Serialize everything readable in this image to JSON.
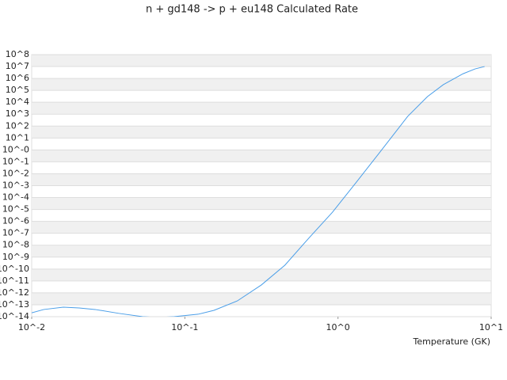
{
  "chart_data": {
    "type": "line",
    "title": "n + gd148 -> p + eu148 Calculated Rate",
    "x_label": "Temperature (GK)",
    "log_x": true,
    "log_y": true,
    "grid": true,
    "xlim": [
      0.01,
      10
    ],
    "ylim": [
      1e-14,
      100000000.0
    ],
    "xticks": [
      {
        "value": 0.01,
        "label": "10^-2"
      },
      {
        "value": 0.1,
        "label": "10^-1"
      },
      {
        "value": 1,
        "label": "10^0"
      },
      {
        "value": 10,
        "label": "10^1"
      }
    ],
    "yticks": [
      {
        "value": 1e-14,
        "label": "10^-14"
      },
      {
        "value": 1e-13,
        "label": "10^-13"
      },
      {
        "value": 1e-12,
        "label": "10^-12"
      },
      {
        "value": 1e-11,
        "label": "10^-11"
      },
      {
        "value": 1e-10,
        "label": "10^-10"
      },
      {
        "value": 1e-09,
        "label": "10^-9"
      },
      {
        "value": 1e-08,
        "label": "10^-8"
      },
      {
        "value": 1e-07,
        "label": "10^-7"
      },
      {
        "value": 1e-06,
        "label": "10^-6"
      },
      {
        "value": 1e-05,
        "label": "10^-5"
      },
      {
        "value": 0.0001,
        "label": "10^-4"
      },
      {
        "value": 0.001,
        "label": "10^-3"
      },
      {
        "value": 0.01,
        "label": "10^-2"
      },
      {
        "value": 0.1,
        "label": "10^-1"
      },
      {
        "value": 1,
        "label": "10^-0"
      },
      {
        "value": 10,
        "label": "10^1"
      },
      {
        "value": 100,
        "label": "10^2"
      },
      {
        "value": 1000,
        "label": "10^3"
      },
      {
        "value": 10000.0,
        "label": "10^4"
      },
      {
        "value": 100000.0,
        "label": "10^5"
      },
      {
        "value": 1000000.0,
        "label": "10^6"
      },
      {
        "value": 10000000.0,
        "label": "10^7"
      },
      {
        "value": 100000000.0,
        "label": "10^8"
      }
    ],
    "x": [
      0.01,
      0.012,
      0.0161,
      0.0204,
      0.026,
      0.037,
      0.053,
      0.067,
      0.085,
      0.122,
      0.155,
      0.22,
      0.316,
      0.45,
      0.65,
      0.92,
      1.32,
      1.88,
      2.85,
      3.84,
      4.87,
      6.56,
      7.85,
      9.06
    ],
    "series": [
      {
        "color": "#4a9ee8",
        "values": [
          2.1e-14,
          4e-14,
          6.3e-14,
          5.4e-14,
          4e-14,
          1.9e-14,
          1e-14,
          8.5e-15,
          1e-14,
          1.6e-14,
          3.4e-14,
          2.1e-13,
          4.6e-12,
          2.1e-10,
          4.4e-08,
          5.9e-06,
          0.002,
          0.66,
          650,
          30000,
          300000,
          2500000,
          6300000,
          10000000
        ]
      }
    ]
  }
}
